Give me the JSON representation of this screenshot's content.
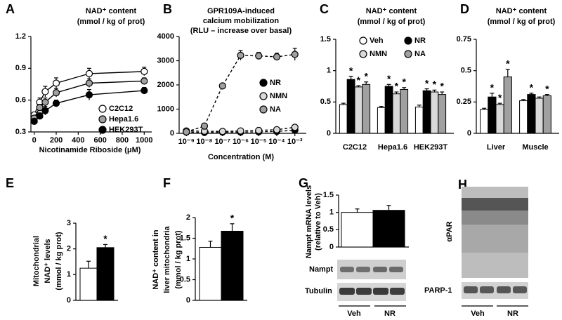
{
  "chart_data": [
    {
      "panel": "A",
      "type": "line",
      "title": "NAD⁺ content",
      "subtitle": "(mmol / kg of prot)",
      "x_label": "Nicotinamide Riboside (μM)",
      "x": [
        0,
        50,
        100,
        200,
        500,
        1000
      ],
      "xlim": [
        -30,
        1030
      ],
      "xticks": [
        0,
        200,
        400,
        600,
        800,
        1000
      ],
      "ylim": [
        0.3,
        1.2
      ],
      "yticks": [
        0.3,
        0.6,
        0.9,
        1.2
      ],
      "legend": "lower right",
      "series": [
        {
          "name": "C2C12",
          "color": "#ffffff",
          "values": [
            0.46,
            0.58,
            0.68,
            0.76,
            0.85,
            0.87
          ],
          "errors": [
            0.02,
            0.04,
            0.05,
            0.05,
            0.05,
            0.04
          ]
        },
        {
          "name": "Hepa1.6",
          "color": "#a0a0a0",
          "values": [
            0.43,
            0.53,
            0.58,
            0.67,
            0.76,
            0.78
          ],
          "errors": [
            0.02,
            0.03,
            0.04,
            0.04,
            0.04,
            0.03
          ]
        },
        {
          "name": "HEK293T",
          "color": "#000000",
          "values": [
            0.4,
            0.45,
            0.5,
            0.57,
            0.65,
            0.69
          ],
          "errors": [
            0.02,
            0.03,
            0.04,
            0.03,
            0.05,
            0.03
          ]
        }
      ]
    },
    {
      "panel": "B",
      "type": "line",
      "title": [
        "GPR109A-induced",
        "calcium mobilization",
        "(RLU – increase over basal)"
      ],
      "x_label": "Concentration (M)",
      "xscale": "log",
      "linestyle": "dashed",
      "x": [
        1e-09,
        1e-08,
        1e-07,
        1e-06,
        1e-05,
        0.0001,
        0.001
      ],
      "xlim": [
        4e-10,
        0.0025
      ],
      "xticks": [
        {
          "value": 1e-09,
          "label": "10⁻⁹"
        },
        {
          "value": 1e-08,
          "label": "10⁻⁸"
        },
        {
          "value": 1e-07,
          "label": "10⁻⁷"
        },
        {
          "value": 1e-06,
          "label": "10⁻⁶"
        },
        {
          "value": 1e-05,
          "label": "10⁻⁵"
        },
        {
          "value": 0.0001,
          "label": "10⁻⁴"
        },
        {
          "value": 0.001,
          "label": "10⁻³"
        }
      ],
      "ylim": [
        0,
        4000
      ],
      "yticks": [
        0,
        1000,
        2000,
        3000,
        4000
      ],
      "legend": "right",
      "series": [
        {
          "name": "NR",
          "color": "#000000",
          "values": [
            50,
            40,
            50,
            50,
            60,
            80,
            130
          ],
          "errors": [
            20,
            20,
            20,
            20,
            20,
            20,
            30
          ]
        },
        {
          "name": "NMN",
          "color": "#d9d9d9",
          "values": [
            100,
            90,
            80,
            100,
            120,
            150,
            250
          ],
          "errors": [
            20,
            20,
            20,
            20,
            20,
            30,
            40
          ]
        },
        {
          "name": "NA",
          "color": "#a0a0a0",
          "values": [
            60,
            300,
            1960,
            3220,
            3200,
            3160,
            3260
          ],
          "errors": [
            20,
            40,
            60,
            200,
            140,
            150,
            250
          ]
        }
      ]
    },
    {
      "panel": "C",
      "type": "bar",
      "title": "NAD⁺ content",
      "subtitle": "(mmol / kg of prot)",
      "categories": [
        "C2C12",
        "Hepa1.6",
        "HEK293T"
      ],
      "ylim": [
        0,
        1.5
      ],
      "yticks": [
        0,
        0.5,
        1,
        1.5
      ],
      "legend": "upper center",
      "series": [
        {
          "name": "Veh",
          "color": "#ffffff",
          "values": [
            0.46,
            0.41,
            0.42
          ],
          "errors": [
            0.02,
            0.02,
            0.03
          ]
        },
        {
          "name": "NR",
          "color": "#000000",
          "values": [
            0.86,
            0.75,
            0.68
          ],
          "errors": [
            0.05,
            0.03,
            0.03
          ],
          "significance": [
            "*",
            "*",
            "*"
          ]
        },
        {
          "name": "NMN",
          "color": "#d9d9d9",
          "values": [
            0.74,
            0.63,
            0.66
          ],
          "errors": [
            0.02,
            0.03,
            0.03
          ],
          "significance": [
            "*",
            "*",
            "*"
          ]
        },
        {
          "name": "NA",
          "color": "#a0a0a0",
          "values": [
            0.78,
            0.7,
            0.62
          ],
          "errors": [
            0.04,
            0.03,
            0.04
          ],
          "significance": [
            "*",
            "*",
            "*"
          ]
        }
      ]
    },
    {
      "panel": "D",
      "type": "bar",
      "title": "NAD⁺ content",
      "subtitle": "(mmol / kg of prot)",
      "categories": [
        "Liver",
        "Muscle"
      ],
      "ylim": [
        0,
        0.75
      ],
      "yticks": [
        0,
        0.25,
        0.5,
        0.75
      ],
      "series": [
        {
          "color": "#ffffff",
          "values": [
            0.19,
            0.26
          ],
          "errors": [
            0.01,
            0.01
          ]
        },
        {
          "color": "#000000",
          "values": [
            0.29,
            0.31
          ],
          "errors": [
            0.03,
            0.01
          ],
          "significance": [
            "*",
            "*"
          ]
        },
        {
          "color": "#d9d9d9",
          "values": [
            0.23,
            0.28
          ],
          "errors": [
            0.01,
            0.01
          ],
          "significance": [
            "*",
            null
          ]
        },
        {
          "color": "#a0a0a0",
          "values": [
            0.45,
            0.3
          ],
          "errors": [
            0.06,
            0.01
          ],
          "significance": [
            "*",
            "*"
          ]
        }
      ]
    },
    {
      "panel": "E",
      "type": "bar",
      "y_label": [
        "Mitochondrial",
        "NAD⁺ levels",
        "(mmol / kg prot)"
      ],
      "categories": [
        null,
        null
      ],
      "values": [
        1.25,
        2.05
      ],
      "errors": [
        0.27,
        0.12
      ],
      "colors": [
        "#ffffff",
        "#000000"
      ],
      "significance": [
        null,
        "*"
      ],
      "ylim": [
        0,
        3
      ],
      "yticks": [
        0,
        1,
        2,
        3
      ]
    },
    {
      "panel": "F",
      "type": "bar",
      "y_label": [
        "NAD⁺ content in",
        "liver mitochondria",
        "(mmol / kg prot)"
      ],
      "categories": [
        null,
        null
      ],
      "values": [
        1.28,
        1.67
      ],
      "errors": [
        0.15,
        0.18
      ],
      "colors": [
        "#ffffff",
        "#000000"
      ],
      "significance": [
        null,
        "*"
      ],
      "ylim": [
        0,
        2
      ],
      "yticks": [
        0,
        0.5,
        1,
        1.5,
        2
      ]
    },
    {
      "panel": "G",
      "type": "bar",
      "y_label": [
        "Nampt mRNA levels",
        "(relative to Veh)"
      ],
      "categories": [
        null,
        null
      ],
      "values": [
        1.0,
        1.06
      ],
      "errors": [
        0.1,
        0.14
      ],
      "colors": [
        "#ffffff",
        "#000000"
      ],
      "ylim": [
        0,
        1.5
      ],
      "yticks": [
        0,
        0.5,
        1,
        1.5
      ]
    }
  ],
  "blots": {
    "G": {
      "rows": [
        "Nampt",
        "Tubulin"
      ],
      "groups": [
        "Veh",
        "NR"
      ]
    },
    "H": {
      "panel": "H",
      "rows": [
        "αPAR",
        "PARP-1"
      ],
      "groups": [
        "Veh",
        "NR"
      ]
    }
  }
}
